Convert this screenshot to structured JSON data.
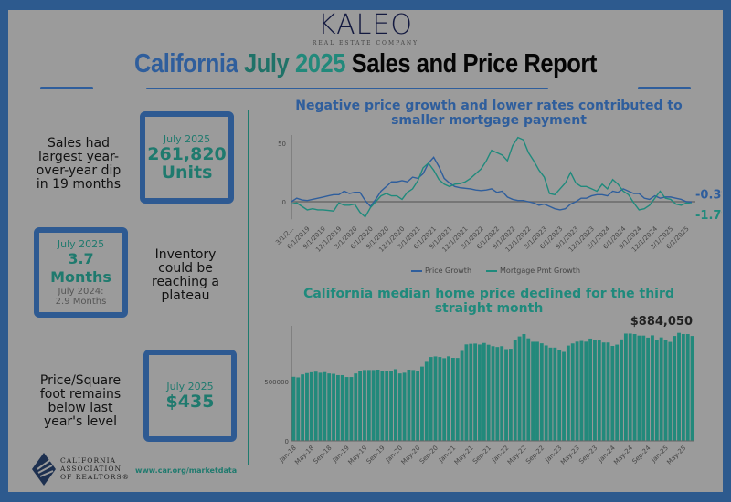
{
  "header": {
    "logo_name": "KALEO",
    "logo_sub": "REAL ESTATE COMPANY",
    "title_part1": "California",
    "title_part2": "July",
    "title_part3": "2025",
    "title_part4": "Sales and Price Report"
  },
  "colors": {
    "blue": "#2f5e9c",
    "teal": "#1f7a6e",
    "border": "#2d5a8e",
    "background": "#9b9b9b"
  },
  "panels": [
    {
      "caption": "Sales had largest year-over-year dip in 19 months",
      "month": "July 2025",
      "value": "261,820",
      "unit": "Units"
    },
    {
      "caption": "Inventory could be reaching a plateau",
      "month": "July 2025",
      "value": "3.7 Months",
      "prior_label": "July 2024:",
      "prior_value": "2.9 Months"
    },
    {
      "caption": "Price/Square foot remains below last year's level",
      "month": "July 2025",
      "value": "$435"
    }
  ],
  "footer": {
    "org_line1": "CALIFORNIA",
    "org_line2": "ASSOCIATION",
    "org_line3": "OF REALTORS®",
    "url": "www.car.org/marketdata"
  },
  "chart_data": [
    {
      "type": "line",
      "title": "Negative price growth and lower rates contributed to smaller mortgage payment",
      "xlabel": "",
      "ylabel": "",
      "ylim": [
        -15,
        57
      ],
      "yticks": [
        0,
        50
      ],
      "x_start": "3/1/2019",
      "x_end": "7/1/2025",
      "frequency": "monthly",
      "tick_labels": [
        "3/1/2...",
        "6/1/2019",
        "9/1/2019",
        "12/1/2019",
        "3/1/2020",
        "6/1/2020",
        "9/1/2020",
        "12/1/2020",
        "3/1/2021",
        "6/1/2021",
        "9/1/2021",
        "12/1/2021",
        "3/1/2022",
        "6/1/2022",
        "9/1/2022",
        "12/1/2022",
        "3/1/2023",
        "6/1/2023",
        "9/1/2023",
        "12/1/2023",
        "3/1/2024",
        "6/1/2024",
        "9/1/2024",
        "12/1/2024",
        "3/1/2025",
        "6/1/2025"
      ],
      "legend_position": "bottom",
      "series": [
        {
          "name": "Price Growth",
          "color": "#2f5e9c",
          "end_label": "-0.3%",
          "values": [
            0,
            3,
            1.5,
            1,
            2,
            3,
            4,
            5,
            6,
            6,
            9,
            7,
            8,
            8,
            1,
            -4,
            2,
            9,
            13,
            17,
            17,
            18,
            17,
            21,
            20,
            24,
            33,
            38,
            30,
            20,
            16,
            13,
            12,
            11.5,
            11,
            10,
            9.5,
            10,
            11,
            8,
            9,
            4,
            2,
            1,
            1,
            0,
            -1,
            -3,
            -2,
            -4,
            -6,
            -7,
            -6,
            -2,
            0,
            3,
            3,
            5,
            6,
            6,
            5,
            9,
            8,
            11,
            9,
            7,
            7,
            3,
            2,
            5,
            3,
            4,
            4,
            3,
            2,
            0,
            -0.3
          ]
        },
        {
          "name": "Mortgage Pmt Growth",
          "color": "#1f8a7c",
          "end_label": "-1.7%",
          "values": [
            -2,
            -1,
            -4,
            -7,
            -6,
            -7,
            -7,
            -7.5,
            -8,
            -1,
            -3,
            -3,
            -2,
            -9,
            -13,
            -5,
            0,
            5,
            7,
            5,
            5,
            2,
            8,
            11,
            18,
            29,
            33,
            27,
            19,
            15,
            13,
            15,
            15.5,
            17,
            20,
            24,
            28,
            35,
            44,
            42,
            40,
            35,
            48,
            55,
            53,
            42,
            35,
            27,
            21,
            7,
            6,
            11,
            16,
            25,
            16,
            13,
            13,
            11,
            9,
            15,
            11,
            19,
            15,
            9,
            6,
            -1,
            -7,
            -6,
            -3,
            3,
            9,
            3,
            2,
            -2,
            -3,
            -1,
            -1.7
          ]
        }
      ]
    },
    {
      "type": "bar",
      "title": "California median home price declined for the third straight month",
      "xlabel": "",
      "ylabel": "",
      "ylim": [
        0,
        950000
      ],
      "yticks": [
        0,
        500000
      ],
      "tick_labels": [
        "Jan-18",
        "May-18",
        "Sep-18",
        "Jan-19",
        "May-19",
        "Sep-19",
        "Jan-20",
        "May-20",
        "Sep-20",
        "Jan-21",
        "May-21",
        "Sep-21",
        "Jan-22",
        "May-22",
        "Sep-22",
        "Jan-23",
        "May-23",
        "Sep-23",
        "Jan-24",
        "May-24",
        "Sep-24",
        "Jan-25",
        "May-25"
      ],
      "x_start": "Jan-18",
      "x_end": "Jul-25",
      "frequency": "monthly",
      "annotation": "$884,050",
      "color": "#22897b",
      "values": [
        540000,
        535000,
        560000,
        571000,
        578000,
        583000,
        574000,
        579000,
        568000,
        565000,
        554000,
        554000,
        538000,
        538000,
        568000,
        592000,
        597000,
        597000,
        597000,
        600000,
        592000,
        592000,
        585000,
        604000,
        568000,
        574000,
        600000,
        597000,
        585000,
        626000,
        666000,
        707000,
        712000,
        707000,
        697000,
        713000,
        700000,
        699000,
        758000,
        813000,
        818000,
        820000,
        812000,
        825000,
        810000,
        798000,
        791000,
        798000,
        773000,
        776000,
        849000,
        880000,
        900000,
        864000,
        835000,
        835000,
        822000,
        804000,
        786000,
        786000,
        768000,
        750000,
        803000,
        821000,
        836000,
        842000,
        836000,
        862000,
        850000,
        846000,
        829000,
        829000,
        800000,
        811000,
        855000,
        904000,
        904000,
        900000,
        887000,
        887000,
        870000,
        889000,
        853000,
        872000,
        848000,
        834000,
        884000,
        910000,
        900000,
        900000,
        884050
      ]
    }
  ]
}
